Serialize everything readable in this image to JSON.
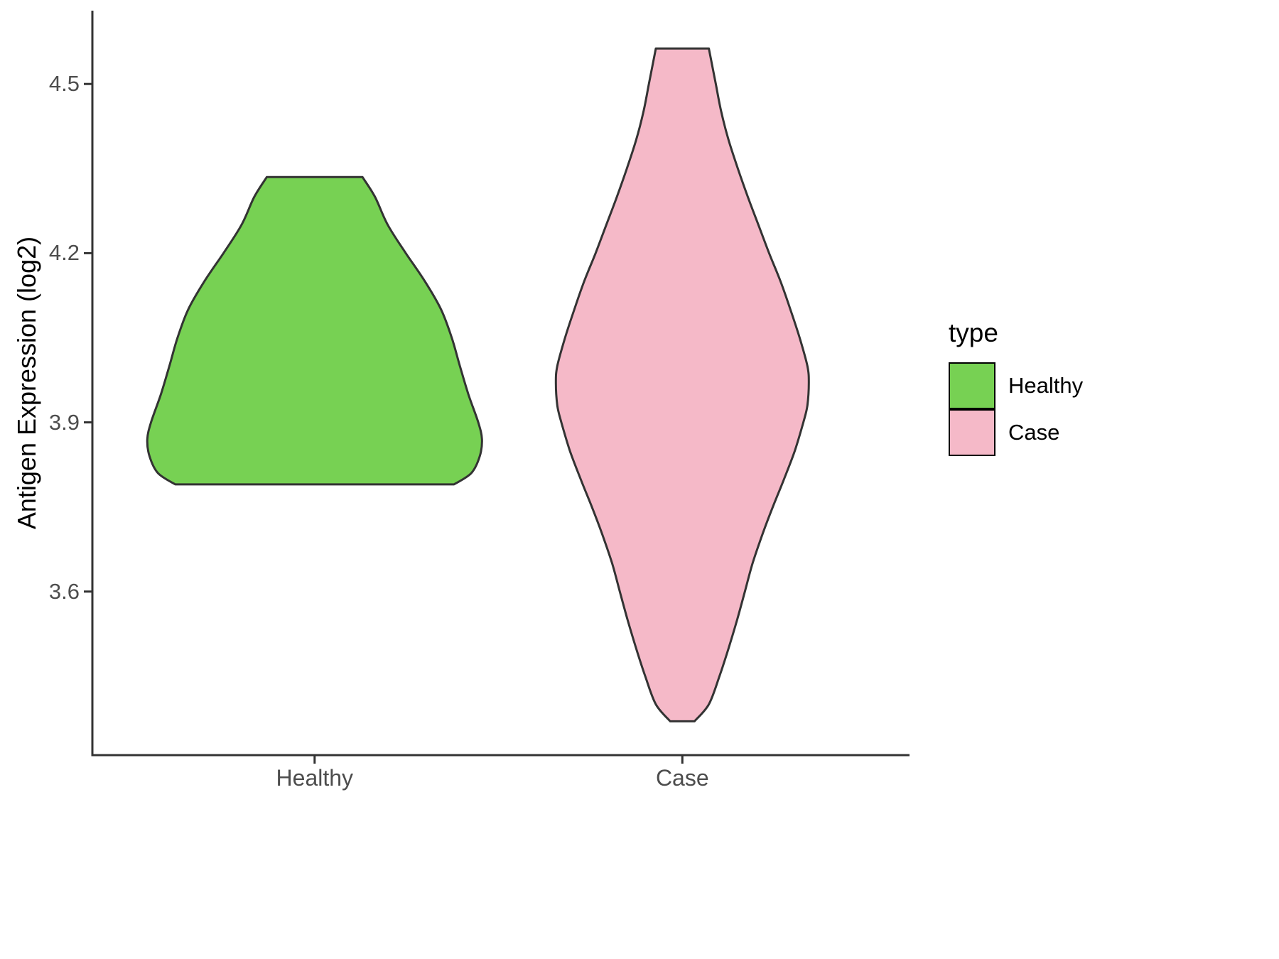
{
  "chart_data": {
    "type": "violin",
    "title": "",
    "xlabel": "",
    "ylabel": "Antigen Expression (log2)",
    "categories": [
      "Healthy",
      "Case"
    ],
    "ylim": [
      3.31,
      4.63
    ],
    "yticks": [
      3.6,
      3.9,
      4.2,
      4.5
    ],
    "ytick_labels": [
      "3.6",
      "3.9",
      "4.2",
      "4.5"
    ],
    "grid": "off",
    "legend": {
      "title": "type",
      "position": "right",
      "entries": [
        {
          "label": "Healthy",
          "color": "#77D153"
        },
        {
          "label": "Case",
          "color": "#F5B9C8"
        }
      ]
    },
    "violins": [
      {
        "name": "Healthy",
        "color": "#77D153",
        "outline_color": "#333333",
        "value_range": [
          3.79,
          4.335
        ],
        "outline": [
          [
            4.335,
            0.13
          ],
          [
            4.3,
            0.164
          ],
          [
            4.25,
            0.199
          ],
          [
            4.2,
            0.248
          ],
          [
            4.15,
            0.3
          ],
          [
            4.1,
            0.344
          ],
          [
            4.05,
            0.373
          ],
          [
            4.0,
            0.395
          ],
          [
            3.95,
            0.418
          ],
          [
            3.9,
            0.445
          ],
          [
            3.87,
            0.455
          ],
          [
            3.84,
            0.449
          ],
          [
            3.81,
            0.426
          ],
          [
            3.79,
            0.379
          ]
        ]
      },
      {
        "name": "Case",
        "color": "#F5B9C8",
        "outline_color": "#333333",
        "value_range": [
          3.37,
          4.563
        ],
        "outline": [
          [
            4.563,
            0.072
          ],
          [
            4.5,
            0.091
          ],
          [
            4.45,
            0.106
          ],
          [
            4.4,
            0.126
          ],
          [
            4.35,
            0.151
          ],
          [
            4.3,
            0.178
          ],
          [
            4.25,
            0.207
          ],
          [
            4.2,
            0.236
          ],
          [
            4.15,
            0.267
          ],
          [
            4.1,
            0.294
          ],
          [
            4.05,
            0.319
          ],
          [
            4.0,
            0.34
          ],
          [
            3.97,
            0.344
          ],
          [
            3.93,
            0.34
          ],
          [
            3.9,
            0.329
          ],
          [
            3.85,
            0.306
          ],
          [
            3.8,
            0.277
          ],
          [
            3.75,
            0.246
          ],
          [
            3.7,
            0.217
          ],
          [
            3.65,
            0.191
          ],
          [
            3.6,
            0.17
          ],
          [
            3.55,
            0.149
          ],
          [
            3.5,
            0.126
          ],
          [
            3.45,
            0.101
          ],
          [
            3.4,
            0.072
          ],
          [
            3.37,
            0.033
          ]
        ]
      }
    ]
  }
}
